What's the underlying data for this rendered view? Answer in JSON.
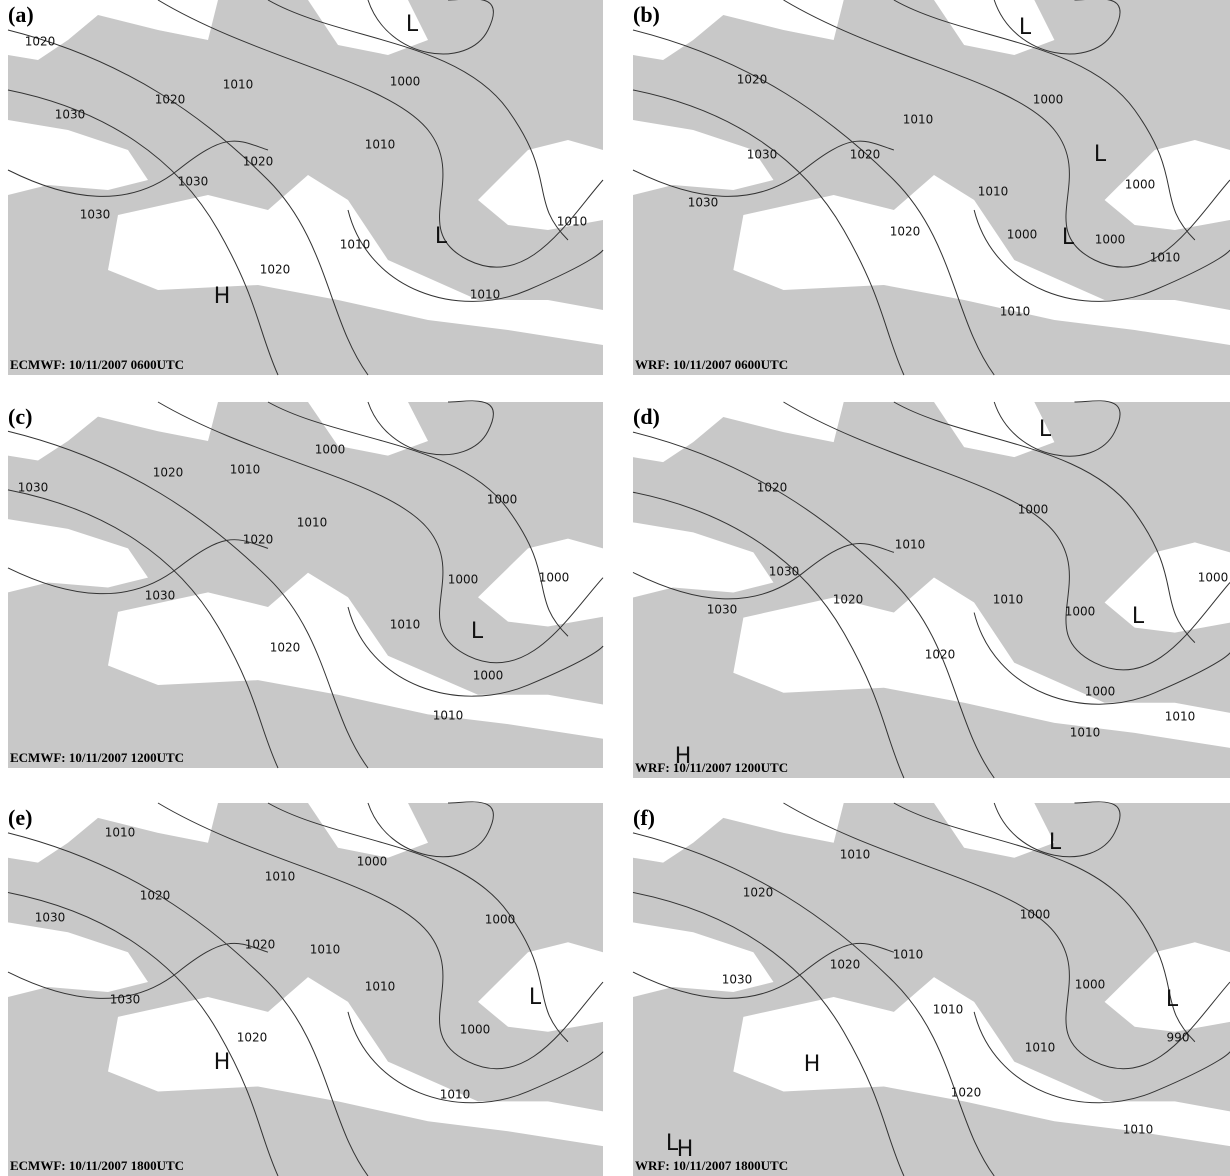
{
  "panels": [
    {
      "label": "(a)",
      "caption": "ECMWF: 10/11/2007 0600UTC",
      "annotations": [
        "1020",
        "1020",
        "1030",
        "1010",
        "1000",
        "1010",
        "1020",
        "1030",
        "1030",
        "1010",
        "1020",
        "1010",
        "1010",
        "L",
        "L",
        "H"
      ]
    },
    {
      "label": "(b)",
      "caption": "WRF: 10/11/2007 0600UTC",
      "annotations": [
        "1020",
        "1030",
        "1030",
        "1010",
        "1000",
        "1020",
        "1010",
        "1020",
        "1000",
        "1000",
        "1000",
        "1010",
        "1010",
        "L",
        "L",
        "L"
      ]
    },
    {
      "label": "(c)",
      "caption": "ECMWF: 10/11/2007 1200UTC",
      "annotations": [
        "1010",
        "1000",
        "1020",
        "1030",
        "1010",
        "1020",
        "1000",
        "1030",
        "1000",
        "1010",
        "1000",
        "1020",
        "1000",
        "1010",
        "L"
      ]
    },
    {
      "label": "(d)",
      "caption": "WRF: 10/11/2007 1200UTC",
      "annotations": [
        "1020",
        "1030",
        "1030",
        "1010",
        "1000",
        "1020",
        "1010",
        "1000",
        "1000",
        "1020",
        "1000",
        "1010",
        "1010",
        "L",
        "L",
        "H"
      ]
    },
    {
      "label": "(e)",
      "caption": "ECMWF: 10/11/2007 1800UTC",
      "annotations": [
        "1010",
        "1000",
        "1010",
        "1020",
        "1030",
        "1020",
        "1010",
        "1010",
        "1030",
        "1000",
        "1000",
        "1020",
        "1010",
        "L",
        "H"
      ]
    },
    {
      "label": "(f)",
      "caption": "WRF: 10/11/2007 1800UTC",
      "annotations": [
        "1010",
        "1020",
        "1000",
        "1010",
        "1030",
        "1020",
        "1000",
        "1010",
        "1010",
        "990",
        "1020",
        "1010",
        "L",
        "L",
        "H",
        "L",
        "H"
      ]
    }
  ]
}
